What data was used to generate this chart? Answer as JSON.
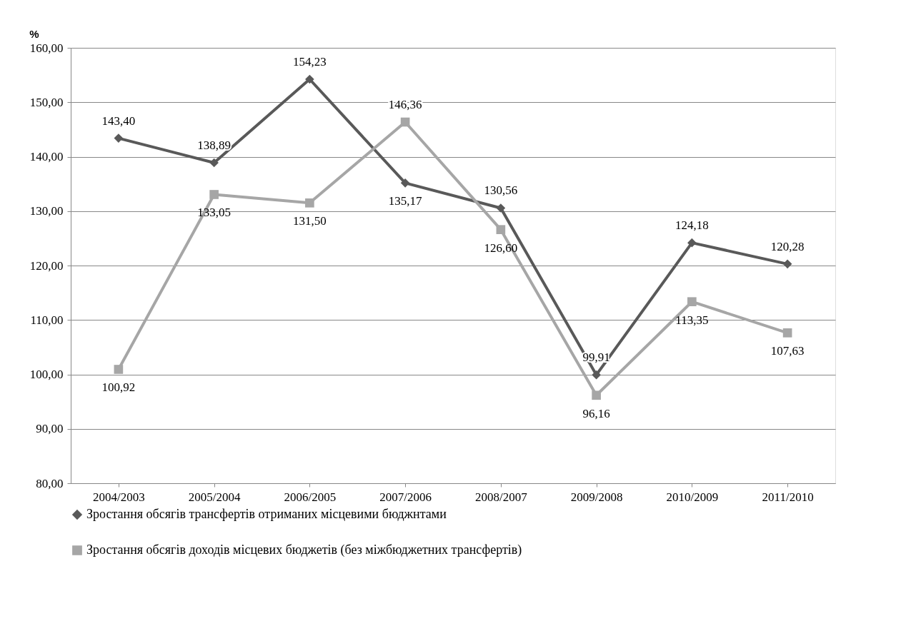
{
  "chart_data": {
    "type": "line",
    "ylabel": "%",
    "categories": [
      "2004/2003",
      "2005/2004",
      "2006/2005",
      "2007/2006",
      "2008/2007",
      "2009/2008",
      "2010/2009",
      "2011/2010"
    ],
    "series": [
      {
        "name": "Зростання обсягів трансфертів отриманих місцевими бюджнтами",
        "color": "#595959",
        "marker": "diamond",
        "values": [
          143.4,
          138.89,
          154.23,
          135.17,
          130.56,
          99.91,
          124.18,
          120.28
        ],
        "value_labels": [
          "143,40",
          "138,89",
          "154,23",
          "135,17",
          "130,56",
          "99,91",
          "124,18",
          "120,28"
        ]
      },
      {
        "name": "Зростання обсягів доходів місцевих бюджетів (без міжбюджетних трансфертів)",
        "color": "#a6a6a6",
        "marker": "square",
        "values": [
          100.92,
          133.05,
          131.5,
          146.36,
          126.6,
          96.16,
          113.35,
          107.63
        ],
        "value_labels": [
          "100,92",
          "133,05",
          "131,50",
          "146,36",
          "126,60",
          "96,16",
          "113,35",
          "107,63"
        ]
      }
    ],
    "ylim": [
      80,
      160
    ],
    "yticks": [
      {
        "value": 80,
        "label": "80,00"
      },
      {
        "value": 90,
        "label": "90,00"
      },
      {
        "value": 100,
        "label": "100,00"
      },
      {
        "value": 110,
        "label": "110,00"
      },
      {
        "value": 120,
        "label": "120,00"
      },
      {
        "value": 130,
        "label": "130,00"
      },
      {
        "value": 140,
        "label": "140,00"
      },
      {
        "value": 150,
        "label": "150,00"
      },
      {
        "value": 160,
        "label": "160,00"
      }
    ],
    "grid": "y",
    "legend": "bottom left",
    "line_style": "solid"
  }
}
